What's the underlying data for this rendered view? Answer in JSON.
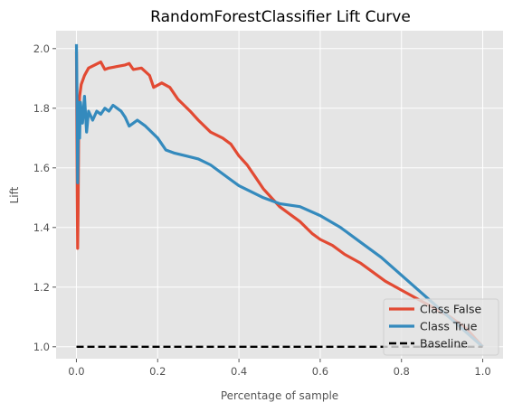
{
  "chart_data": {
    "type": "line",
    "title": "RandomForestClassifier Lift Curve",
    "xlabel": "Percentage of sample",
    "ylabel": "Lift",
    "xlim": [
      -0.05,
      1.05
    ],
    "ylim": [
      0.96,
      2.06
    ],
    "x_ticks": [
      0.0,
      0.2,
      0.4,
      0.6,
      0.8,
      1.0
    ],
    "x_tick_labels": [
      "0.0",
      "0.2",
      "0.4",
      "0.6",
      "0.8",
      "1.0"
    ],
    "y_ticks": [
      1.0,
      1.2,
      1.4,
      1.6,
      1.8,
      2.0
    ],
    "y_tick_labels": [
      "1.0",
      "1.2",
      "1.4",
      "1.6",
      "1.8",
      "2.0"
    ],
    "grid": true,
    "legend_position": "bottom-right",
    "series": [
      {
        "name": "Class False",
        "color": "#e24a33",
        "style": "solid",
        "points": [
          [
            0.0,
            1.99
          ],
          [
            0.002,
            1.5
          ],
          [
            0.003,
            1.33
          ],
          [
            0.004,
            1.45
          ],
          [
            0.006,
            1.78
          ],
          [
            0.008,
            1.84
          ],
          [
            0.012,
            1.88
          ],
          [
            0.02,
            1.91
          ],
          [
            0.03,
            1.935
          ],
          [
            0.045,
            1.945
          ],
          [
            0.06,
            1.955
          ],
          [
            0.07,
            1.93
          ],
          [
            0.08,
            1.935
          ],
          [
            0.1,
            1.94
          ],
          [
            0.12,
            1.945
          ],
          [
            0.13,
            1.95
          ],
          [
            0.14,
            1.93
          ],
          [
            0.16,
            1.935
          ],
          [
            0.18,
            1.91
          ],
          [
            0.19,
            1.87
          ],
          [
            0.21,
            1.885
          ],
          [
            0.23,
            1.87
          ],
          [
            0.25,
            1.83
          ],
          [
            0.28,
            1.79
          ],
          [
            0.3,
            1.76
          ],
          [
            0.33,
            1.72
          ],
          [
            0.36,
            1.7
          ],
          [
            0.38,
            1.68
          ],
          [
            0.4,
            1.64
          ],
          [
            0.42,
            1.61
          ],
          [
            0.44,
            1.57
          ],
          [
            0.46,
            1.53
          ],
          [
            0.48,
            1.5
          ],
          [
            0.5,
            1.47
          ],
          [
            0.52,
            1.45
          ],
          [
            0.55,
            1.42
          ],
          [
            0.58,
            1.38
          ],
          [
            0.6,
            1.36
          ],
          [
            0.63,
            1.34
          ],
          [
            0.66,
            1.31
          ],
          [
            0.7,
            1.28
          ],
          [
            0.73,
            1.25
          ],
          [
            0.76,
            1.22
          ],
          [
            0.8,
            1.19
          ],
          [
            0.84,
            1.16
          ],
          [
            0.88,
            1.13
          ],
          [
            0.92,
            1.1
          ],
          [
            0.96,
            1.06
          ],
          [
            1.0,
            1.0
          ]
        ]
      },
      {
        "name": "Class True",
        "color": "#348abd",
        "style": "solid",
        "points": [
          [
            0.0,
            2.015
          ],
          [
            0.002,
            1.75
          ],
          [
            0.003,
            1.55
          ],
          [
            0.004,
            1.7
          ],
          [
            0.005,
            1.82
          ],
          [
            0.008,
            1.7
          ],
          [
            0.01,
            1.82
          ],
          [
            0.015,
            1.75
          ],
          [
            0.02,
            1.84
          ],
          [
            0.025,
            1.72
          ],
          [
            0.03,
            1.79
          ],
          [
            0.04,
            1.76
          ],
          [
            0.05,
            1.79
          ],
          [
            0.06,
            1.78
          ],
          [
            0.07,
            1.8
          ],
          [
            0.08,
            1.79
          ],
          [
            0.09,
            1.81
          ],
          [
            0.1,
            1.8
          ],
          [
            0.11,
            1.79
          ],
          [
            0.12,
            1.77
          ],
          [
            0.13,
            1.74
          ],
          [
            0.14,
            1.75
          ],
          [
            0.15,
            1.76
          ],
          [
            0.17,
            1.74
          ],
          [
            0.2,
            1.7
          ],
          [
            0.22,
            1.66
          ],
          [
            0.24,
            1.65
          ],
          [
            0.27,
            1.64
          ],
          [
            0.3,
            1.63
          ],
          [
            0.33,
            1.61
          ],
          [
            0.36,
            1.58
          ],
          [
            0.38,
            1.56
          ],
          [
            0.4,
            1.54
          ],
          [
            0.43,
            1.52
          ],
          [
            0.46,
            1.5
          ],
          [
            0.5,
            1.48
          ],
          [
            0.55,
            1.47
          ],
          [
            0.6,
            1.44
          ],
          [
            0.65,
            1.4
          ],
          [
            0.7,
            1.35
          ],
          [
            0.75,
            1.3
          ],
          [
            0.8,
            1.24
          ],
          [
            0.85,
            1.18
          ],
          [
            0.9,
            1.12
          ],
          [
            0.95,
            1.06
          ],
          [
            1.0,
            1.0
          ]
        ]
      },
      {
        "name": "Baseline",
        "color": "#000000",
        "style": "dashed",
        "points": [
          [
            0.0,
            1.0
          ],
          [
            1.0,
            1.0
          ]
        ]
      }
    ]
  }
}
